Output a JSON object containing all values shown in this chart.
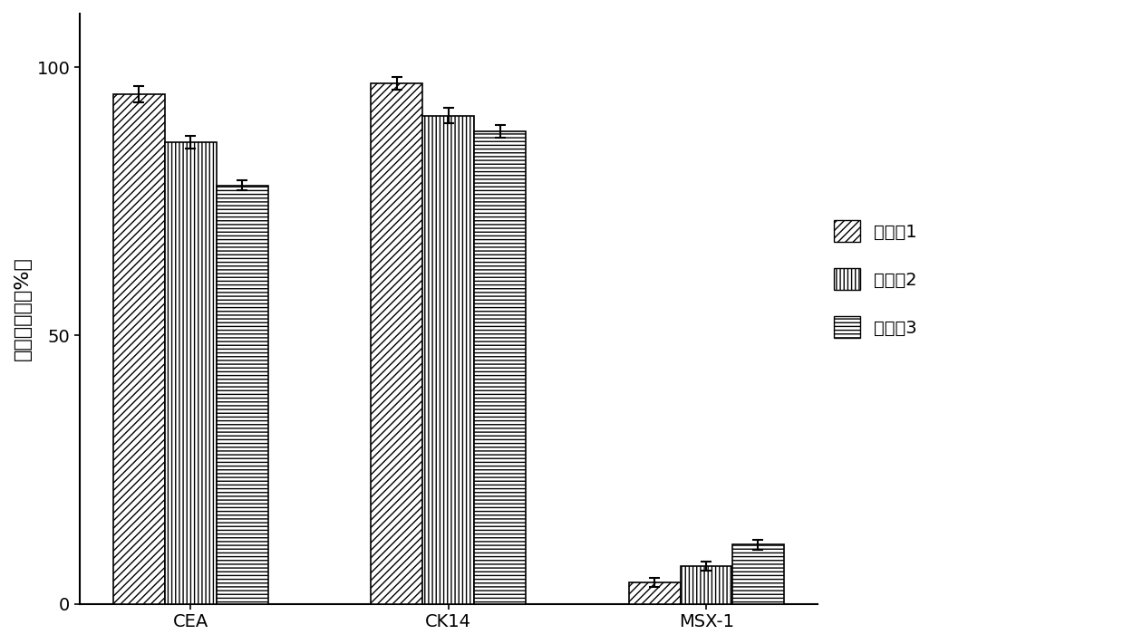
{
  "categories": [
    "CEA",
    "CK14",
    "MSX-1"
  ],
  "series": [
    {
      "label": "实施例1",
      "values": [
        95,
        97,
        4
      ],
      "errors": [
        1.5,
        1.2,
        0.8
      ]
    },
    {
      "label": "实施例2",
      "values": [
        86,
        91,
        7
      ],
      "errors": [
        1.2,
        1.5,
        0.8
      ]
    },
    {
      "label": "实施例3",
      "values": [
        78,
        88,
        11
      ],
      "errors": [
        1.0,
        1.2,
        1.0
      ]
    }
  ],
  "ylabel": "细胞阳性率（%）",
  "ylim": [
    0,
    110
  ],
  "yticks": [
    0,
    50,
    100
  ],
  "bar_width": 0.2,
  "background_color": "#ffffff",
  "hatch_patterns": [
    "////",
    "||||",
    "----"
  ],
  "facecolor": "#ffffff",
  "edgecolor": "#000000",
  "axis_fontsize": 16,
  "tick_fontsize": 14,
  "legend_fontsize": 14
}
